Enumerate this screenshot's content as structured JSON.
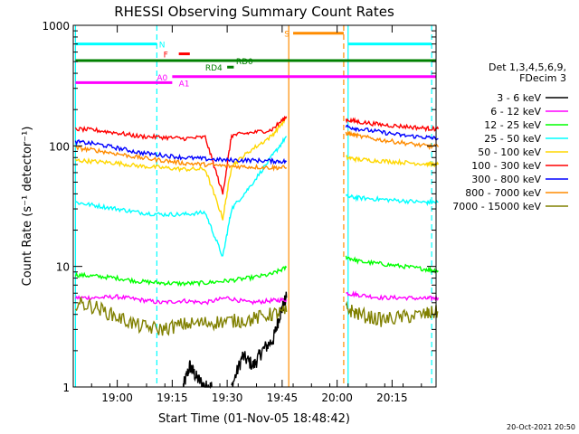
{
  "chart_data": {
    "type": "line",
    "title": "RHESSI Observing Summary Count Rates",
    "xlabel": "Start Time (01-Nov-05 18:48:42)",
    "ylabel": "Count Rate (s⁻¹ detector⁻¹)",
    "yscale": "log",
    "ylim": [
      1,
      1000
    ],
    "xlim_minutes": [
      18.8,
      20.45
    ],
    "x_ticks": [
      "19:00",
      "19:15",
      "19:30",
      "19:45",
      "20:00",
      "20:15"
    ],
    "x_tick_values": [
      19.0,
      19.25,
      19.5,
      19.75,
      20.0,
      20.25
    ],
    "y_ticks": [
      "1",
      "10",
      "100",
      "1000"
    ],
    "y_tick_values": [
      1,
      10,
      100,
      1000
    ],
    "legend_header": [
      "Det 1,3,4,5,6,9,",
      "FDecim 3"
    ],
    "legend_placement": "right",
    "series": [
      {
        "name": "3 - 6 keV",
        "color": "#000000",
        "segments": [
          {
            "x": [
              19.3,
              19.33,
              19.36,
              19.4,
              19.43
            ],
            "y": [
              1.0,
              1.5,
              1.2,
              1.0,
              1.0
            ]
          },
          {
            "x": [
              19.52,
              19.57,
              19.62,
              19.66,
              19.71,
              19.74,
              19.77
            ],
            "y": [
              1.0,
              1.8,
              1.5,
              2.0,
              2.5,
              4.0,
              5.5
            ]
          }
        ]
      },
      {
        "name": "6 - 12 keV",
        "color": "#ff00ff",
        "segments": [
          {
            "x": [
              18.81,
              18.9,
              19.0,
              19.1,
              19.2,
              19.3,
              19.4,
              19.5,
              19.6,
              19.7,
              19.77
            ],
            "y": [
              5.5,
              5.5,
              5.6,
              5.3,
              5.0,
              5.2,
              5.0,
              5.5,
              5.0,
              5.2,
              5.3
            ]
          },
          {
            "x": [
              20.04,
              20.1,
              20.2,
              20.3,
              20.4,
              20.46
            ],
            "y": [
              6.0,
              5.8,
              5.5,
              5.5,
              5.4,
              5.5
            ]
          }
        ]
      },
      {
        "name": "12 - 25 keV",
        "color": "#00ff00",
        "segments": [
          {
            "x": [
              18.81,
              18.9,
              19.0,
              19.1,
              19.2,
              19.3,
              19.4,
              19.5,
              19.6,
              19.7,
              19.77
            ],
            "y": [
              8.5,
              8.3,
              8.0,
              7.5,
              7.3,
              7.2,
              7.3,
              7.6,
              8.0,
              8.6,
              9.8
            ]
          },
          {
            "x": [
              20.04,
              20.1,
              20.2,
              20.3,
              20.4,
              20.46
            ],
            "y": [
              12.0,
              11.0,
              10.5,
              10.0,
              9.5,
              9.2
            ]
          }
        ]
      },
      {
        "name": "25 - 50 keV",
        "color": "#00ffff",
        "segments": [
          {
            "x": [
              18.81,
              18.9,
              19.0,
              19.1,
              19.2,
              19.3,
              19.4,
              19.48,
              19.52,
              19.6,
              19.7,
              19.77
            ],
            "y": [
              34,
              32,
              30,
              28,
              27,
              27,
              28,
              12,
              30,
              45,
              80,
              120
            ]
          },
          {
            "x": [
              20.04,
              20.1,
              20.2,
              20.3,
              20.4,
              20.46
            ],
            "y": [
              38,
              37,
              36,
              35,
              34,
              34
            ]
          }
        ]
      },
      {
        "name": "50 - 100 keV",
        "color": "#ffd700",
        "segments": [
          {
            "x": [
              18.81,
              18.9,
              19.0,
              19.1,
              19.2,
              19.3,
              19.4,
              19.48,
              19.52,
              19.6,
              19.7,
              19.77
            ],
            "y": [
              76,
              74,
              72,
              68,
              66,
              64,
              64,
              25,
              68,
              90,
              120,
              170
            ]
          },
          {
            "x": [
              20.04,
              20.1,
              20.2,
              20.3,
              20.4,
              20.46
            ],
            "y": [
              80,
              77,
              75,
              73,
              71,
              70
            ]
          }
        ]
      },
      {
        "name": "100 - 300 keV",
        "color": "#ff0000",
        "segments": [
          {
            "x": [
              18.81,
              18.9,
              19.0,
              19.1,
              19.2,
              19.3,
              19.4,
              19.48,
              19.52,
              19.6,
              19.7,
              19.77
            ],
            "y": [
              138,
              135,
              128,
              120,
              118,
              115,
              118,
              40,
              122,
              128,
              135,
              175
            ]
          },
          {
            "x": [
              20.04,
              20.1,
              20.2,
              20.3,
              20.4,
              20.46
            ],
            "y": [
              165,
              158,
              150,
              145,
              140,
              138
            ]
          }
        ]
      },
      {
        "name": "300 - 800 keV",
        "color": "#0000ff",
        "segments": [
          {
            "x": [
              18.81,
              18.9,
              19.0,
              19.1,
              19.2,
              19.3,
              19.4,
              19.5,
              19.6,
              19.7,
              19.77
            ],
            "y": [
              108,
              104,
              96,
              88,
              84,
              80,
              78,
              76,
              76,
              75,
              74
            ]
          },
          {
            "x": [
              20.04,
              20.1,
              20.2,
              20.3,
              20.4,
              20.46
            ],
            "y": [
              145,
              138,
              130,
              122,
              118,
              115
            ]
          }
        ]
      },
      {
        "name": "800 - 7000 keV",
        "color": "#ff8c00",
        "segments": [
          {
            "x": [
              18.81,
              18.9,
              19.0,
              19.1,
              19.2,
              19.3,
              19.4,
              19.5,
              19.6,
              19.7,
              19.77
            ],
            "y": [
              96,
              92,
              86,
              80,
              76,
              72,
              70,
              68,
              67,
              66,
              66
            ]
          },
          {
            "x": [
              20.04,
              20.1,
              20.2,
              20.3,
              20.4,
              20.46
            ],
            "y": [
              128,
              120,
              112,
              106,
              100,
              98
            ]
          }
        ]
      },
      {
        "name": "7000 - 15000 keV",
        "color": "#808000",
        "segments": [
          {
            "x": [
              18.81,
              18.9,
              19.0,
              19.1,
              19.2,
              19.3,
              19.4,
              19.5,
              19.6,
              19.7,
              19.77
            ],
            "y": [
              5.0,
              4.6,
              3.8,
              3.2,
              3.0,
              3.3,
              3.4,
              3.5,
              3.6,
              4.0,
              4.2
            ]
          },
          {
            "x": [
              20.04,
              20.1,
              20.2,
              20.3,
              20.4,
              20.46
            ],
            "y": [
              4.5,
              4.0,
              3.6,
              3.8,
              4.0,
              4.2
            ]
          }
        ]
      }
    ],
    "vertical_lines": [
      {
        "x": 18.81,
        "color": "#00ffff",
        "style": "solid"
      },
      {
        "x": 19.18,
        "color": "#00ffff",
        "style": "dashed"
      },
      {
        "x": 19.78,
        "color": "#ff8c00",
        "style": "solid"
      },
      {
        "x": 20.03,
        "color": "#ff8c00",
        "style": "dashed"
      },
      {
        "x": 20.05,
        "color": "#00ffff",
        "style": "solid"
      },
      {
        "x": 20.43,
        "color": "#00ffff",
        "style": "dashed"
      }
    ],
    "flag_bars": [
      {
        "label": "N",
        "color": "#00ffff",
        "x_start": 18.81,
        "x_end": 19.18,
        "y": 700,
        "label_x": 19.19,
        "label_side": "right"
      },
      {
        "label": "N",
        "color": "#00ffff",
        "x_start": 20.05,
        "x_end": 20.43,
        "y": 700,
        "label_x": null,
        "label_side": "none"
      },
      {
        "label": "F",
        "color": "#ff0000",
        "x_start": 19.28,
        "x_end": 19.33,
        "y": 580,
        "label_x": 19.21,
        "label_side": "left"
      },
      {
        "label": "S",
        "color": "#ff8c00",
        "x_start": 19.8,
        "x_end": 20.03,
        "y": 860,
        "label_x": 19.76,
        "label_side": "left"
      },
      {
        "label": "RD0",
        "color": "#008000",
        "x_start": 18.81,
        "x_end": 20.45,
        "y": 510,
        "label_x": 19.54,
        "label_side": "right"
      },
      {
        "label": "RD4",
        "color": "#008000",
        "x_start": 19.5,
        "x_end": 19.53,
        "y": 450,
        "label_x": 19.4,
        "label_side": "left"
      },
      {
        "label": "A0",
        "color": "#ff00ff",
        "x_start": 19.25,
        "x_end": 20.45,
        "y": 375,
        "label_x": 19.18,
        "label_side": "left"
      },
      {
        "label": "A1",
        "color": "#ff00ff",
        "x_start": 18.81,
        "x_end": 19.25,
        "y": 335,
        "label_x": 19.28,
        "label_side": "right"
      }
    ]
  },
  "footer": {
    "timestamp": "20-Oct-2021 20:50"
  }
}
